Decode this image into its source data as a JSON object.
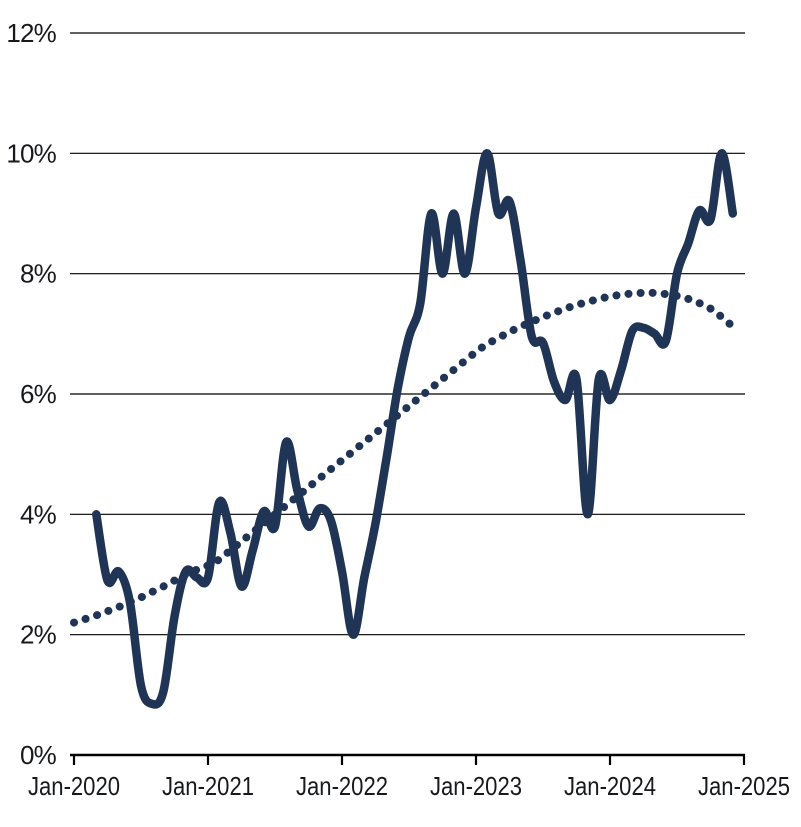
{
  "page": {
    "background_color": "#ffffff",
    "text_color": "#17191c",
    "grid_color": "#000000"
  },
  "chart_data": {
    "type": "line",
    "title": "",
    "xlabel": "",
    "ylabel": "",
    "ylim": [
      0,
      12
    ],
    "grid": "horizontal",
    "legend": "none",
    "line_color": "#203556",
    "y_ticks": {
      "values": [
        0,
        2,
        4,
        6,
        8,
        10,
        12
      ],
      "labels": [
        "0%",
        "2%",
        "4%",
        "6%",
        "8%",
        "10%",
        "12%"
      ]
    },
    "x_ticks": {
      "month_offsets": [
        0,
        12,
        24,
        36,
        48,
        60
      ],
      "labels": [
        "Jan-2020",
        "Jan-2021",
        "Jan-2022",
        "Jan-2023",
        "Jan-2024",
        "Jan-2025"
      ]
    },
    "frequency": "monthly",
    "unit": "percent",
    "series": [
      {
        "name": "solid",
        "style": "solid",
        "start_month": "Mar-2020",
        "start_month_offset": 2,
        "values": [
          4.0,
          2.9,
          3.05,
          2.55,
          1.15,
          0.85,
          1.05,
          2.3,
          3.05,
          2.95,
          2.95,
          4.2,
          3.7,
          2.8,
          3.4,
          4.05,
          3.8,
          5.2,
          4.4,
          3.8,
          4.1,
          3.9,
          3.05,
          2.0,
          2.95,
          3.85,
          4.95,
          6.1,
          6.95,
          7.5,
          9.0,
          8.0,
          9.0,
          8.0,
          9.1,
          10.0,
          9.0,
          9.2,
          8.2,
          6.95,
          6.85,
          6.2,
          5.9,
          6.25,
          4.0,
          6.25,
          5.9,
          6.4,
          7.05,
          7.1,
          7.0,
          6.88,
          8.0,
          8.5,
          9.05,
          8.9,
          10.0,
          9.0
        ]
      },
      {
        "name": "dotted-trend",
        "style": "dotted",
        "start_month": "Jan-2020",
        "start_month_offset": 0,
        "values": [
          2.2,
          2.26,
          2.32,
          2.39,
          2.46,
          2.54,
          2.62,
          2.71,
          2.8,
          2.9,
          3.0,
          3.08,
          3.15,
          3.25,
          3.4,
          3.55,
          3.7,
          3.85,
          4.0,
          4.15,
          4.3,
          4.45,
          4.6,
          4.75,
          4.9,
          5.05,
          5.2,
          5.35,
          5.5,
          5.65,
          5.8,
          5.95,
          6.1,
          6.25,
          6.4,
          6.55,
          6.7,
          6.83,
          6.93,
          7.03,
          7.12,
          7.2,
          7.28,
          7.35,
          7.42,
          7.48,
          7.53,
          7.58,
          7.62,
          7.65,
          7.67,
          7.68,
          7.68,
          7.66,
          7.63,
          7.58,
          7.51,
          7.42,
          7.28,
          7.12
        ]
      }
    ]
  }
}
